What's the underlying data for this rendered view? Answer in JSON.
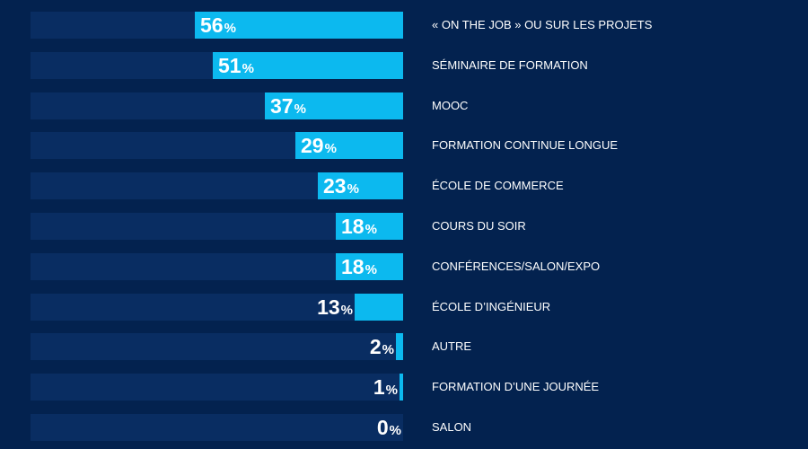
{
  "colors": {
    "background": "#03224f",
    "track": "#092d62",
    "bar": "#0cb9ef",
    "value_text": "#ffffff",
    "label_text": "#ffffff"
  },
  "chart_data": {
    "type": "bar",
    "orientation": "horizontal",
    "categories": [
      "« ON THE JOB » OU SUR LES PROJETS",
      "SÉMINAIRE DE FORMATION",
      "MOOC",
      "FORMATION CONTINUE LONGUE",
      "ÉCOLE DE COMMERCE",
      "COURS DU SOIR",
      "CONFÉRENCES/SALON/EXPO",
      "ÉCOLE D’INGÉNIEUR",
      "AUTRE",
      "FORMATION D’UNE JOURNÉE",
      "SALON"
    ],
    "values": [
      56,
      51,
      37,
      29,
      23,
      18,
      18,
      13,
      2,
      1,
      0
    ],
    "value_labels": [
      "56",
      "51",
      "37",
      "29",
      "23",
      "18",
      "18",
      "13",
      "2",
      "1",
      "0"
    ],
    "unit": "%",
    "xlim": [
      0,
      100
    ],
    "grid": false,
    "legend": "none"
  }
}
